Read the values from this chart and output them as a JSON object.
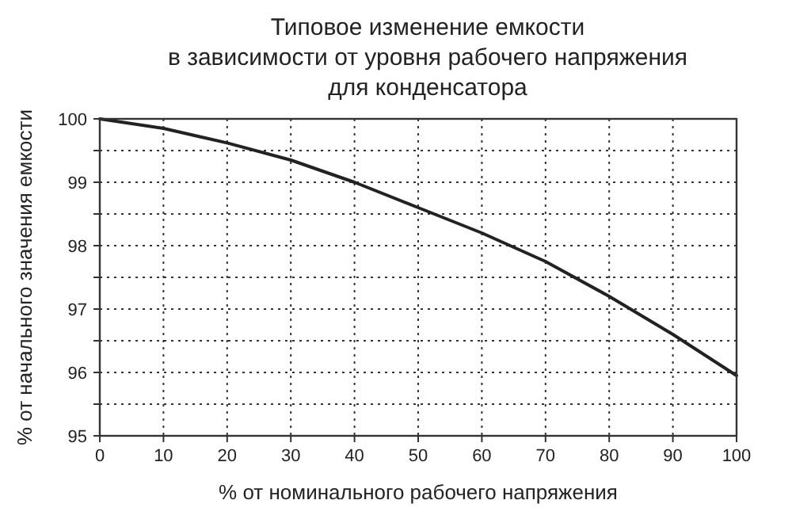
{
  "chart_data": {
    "type": "line",
    "title": "Типовое изменение емкости\nв зависимости от уровня рабочего напряжения\nдля конденсатора",
    "xlabel": "% от номинального рабочего напряжения",
    "ylabel": "% от начального значения емкости",
    "x": [
      0,
      10,
      20,
      30,
      40,
      50,
      60,
      70,
      80,
      90,
      100
    ],
    "series": [
      {
        "color": "#222222",
        "values": [
          100,
          99.85,
          99.62,
          99.35,
          99.0,
          98.6,
          98.2,
          97.75,
          97.2,
          96.6,
          95.95
        ]
      }
    ],
    "xlim": [
      0,
      100
    ],
    "xticks": [
      0,
      10,
      20,
      30,
      40,
      50,
      60,
      70,
      80,
      90,
      100
    ],
    "ylim": [
      95,
      100
    ],
    "yticks": [
      95,
      {
        "value": 95.5,
        "label": null
      },
      96,
      {
        "value": 96.5,
        "label": null
      },
      97,
      {
        "value": 97.5,
        "label": null
      },
      98,
      {
        "value": 98.5,
        "label": null
      },
      99,
      {
        "value": 99.5,
        "label": null
      },
      100
    ],
    "grid": true,
    "marker": "none",
    "line_style": "solid"
  }
}
